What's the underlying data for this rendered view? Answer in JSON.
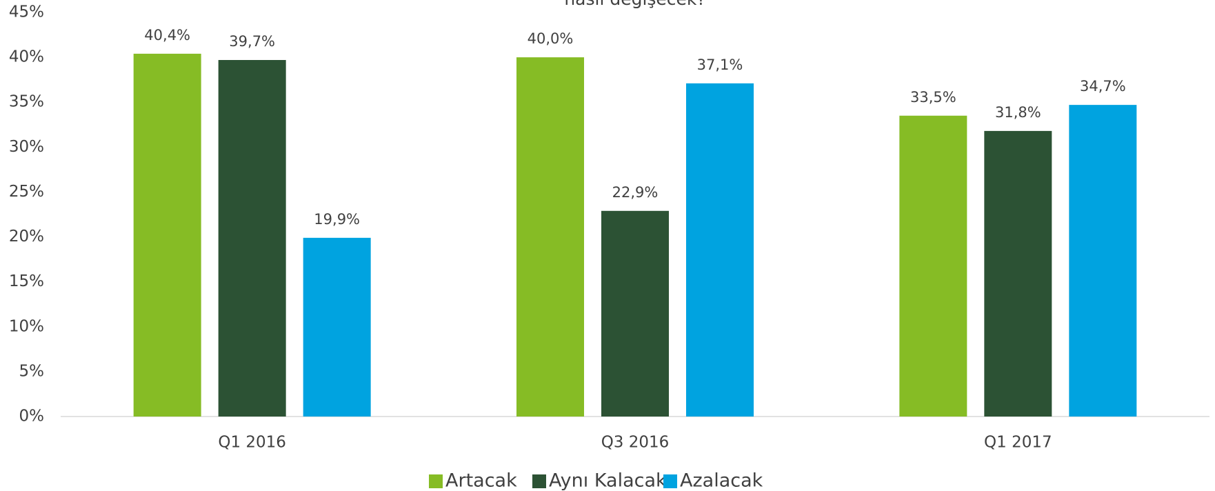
{
  "chart_data": {
    "type": "bar",
    "title": "nasıl değişecek?",
    "categories": [
      "Q1 2016",
      "Q3 2016",
      "Q1 2017"
    ],
    "series": [
      {
        "name": "Artacak",
        "color": "#86bc25",
        "values": [
          40.4,
          40.0,
          33.5
        ],
        "value_labels": [
          "40,4%",
          "40,0%",
          "33,5%"
        ]
      },
      {
        "name": "Aynı Kalacak",
        "color": "#2c5234",
        "values": [
          39.7,
          22.9,
          31.8
        ],
        "value_labels": [
          "39,7%",
          "22,9%",
          "31,8%"
        ]
      },
      {
        "name": "Azalacak",
        "color": "#00a3e0",
        "values": [
          19.9,
          37.1,
          34.7
        ],
        "value_labels": [
          "19,9%",
          "37,1%",
          "34,7%"
        ]
      }
    ],
    "ylim": [
      0,
      45
    ],
    "yticks": [
      {
        "value": 0,
        "label": "0%"
      },
      {
        "value": 5,
        "label": "5%"
      },
      {
        "value": 10,
        "label": "10%"
      },
      {
        "value": 15,
        "label": "15%"
      },
      {
        "value": 20,
        "label": "20%"
      },
      {
        "value": 25,
        "label": "25%"
      },
      {
        "value": 30,
        "label": "30%"
      },
      {
        "value": 35,
        "label": "35%"
      },
      {
        "value": 40,
        "label": "40%"
      },
      {
        "value": 45,
        "label": "45%"
      }
    ],
    "grid": false,
    "legend": "bottom"
  }
}
